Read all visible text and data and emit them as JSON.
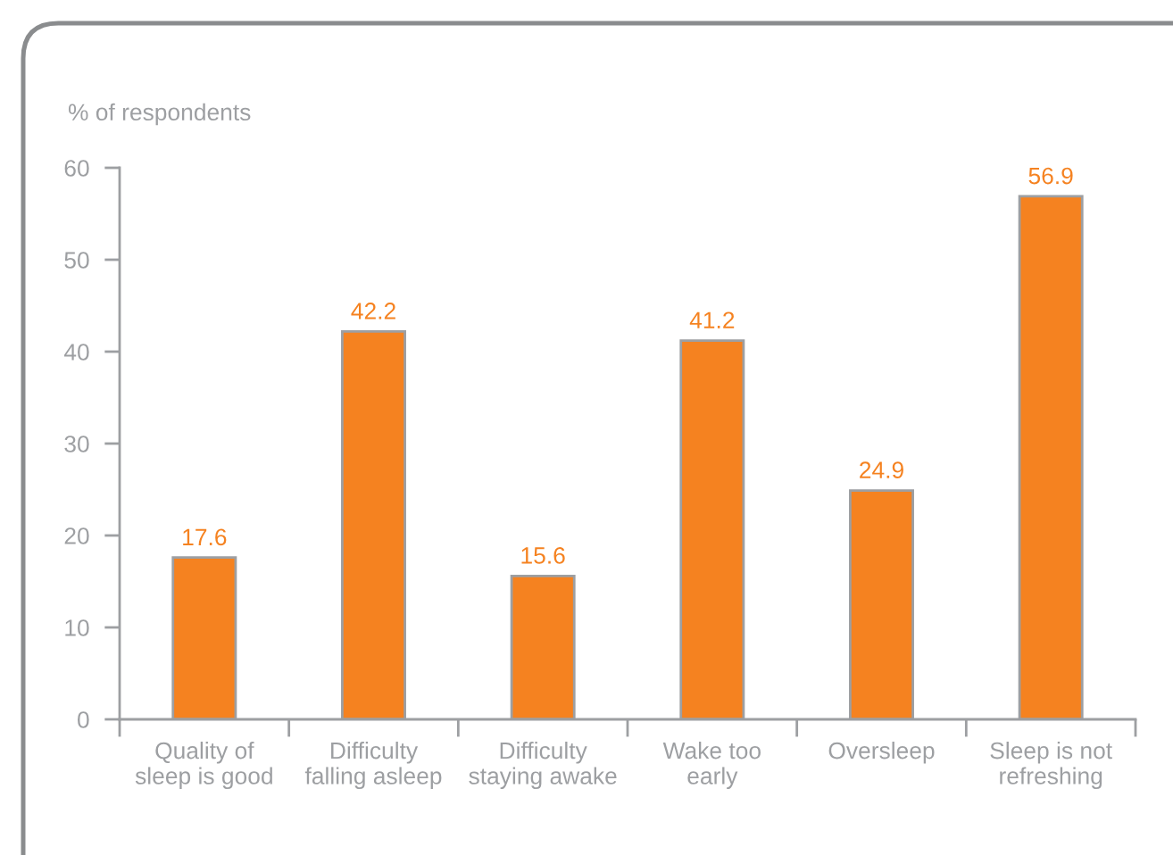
{
  "chart_data": {
    "type": "bar",
    "ylabel": "% of respondents",
    "categories": [
      "Quality of\nsleep is good",
      "Difficulty\nfalling asleep",
      "Difficulty\nstaying awake",
      "Wake too\nearly",
      "Oversleep",
      "Sleep is not\nrefreshing"
    ],
    "values": [
      17.6,
      42.2,
      15.6,
      41.2,
      24.9,
      56.9
    ],
    "color": "#f58220",
    "ylim": [
      0,
      60
    ],
    "yticks": [
      0,
      10,
      20,
      30,
      40,
      50,
      60
    ],
    "grid": false,
    "data_labels": true
  }
}
